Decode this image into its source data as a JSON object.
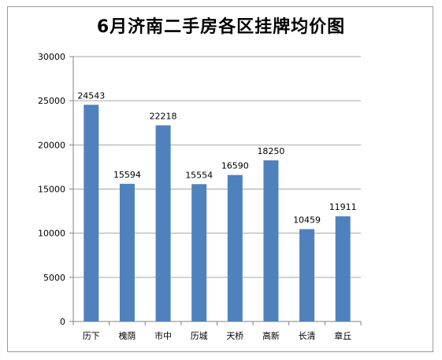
{
  "chart_data": {
    "type": "bar",
    "title": "6月济南二手房各区挂牌均价图",
    "categories": [
      "历下",
      "槐荫",
      "市中",
      "历城",
      "天桥",
      "高新",
      "长清",
      "章丘"
    ],
    "values": [
      24543,
      15594,
      22218,
      15554,
      16590,
      18250,
      10459,
      11911
    ],
    "data_labels": [
      "24543",
      "15594",
      "22218",
      "15554",
      "16590",
      "18250",
      "10459",
      "11911"
    ],
    "yticks": [
      0,
      5000,
      10000,
      15000,
      20000,
      25000,
      30000
    ],
    "ytick_labels": [
      "0",
      "5000",
      "10000",
      "15000",
      "20000",
      "25000",
      "30000"
    ],
    "ylim": [
      0,
      30000
    ],
    "grid": true,
    "legend": "none",
    "bar_color": "#4f81bd",
    "grid_color": "#a6a6a6"
  }
}
